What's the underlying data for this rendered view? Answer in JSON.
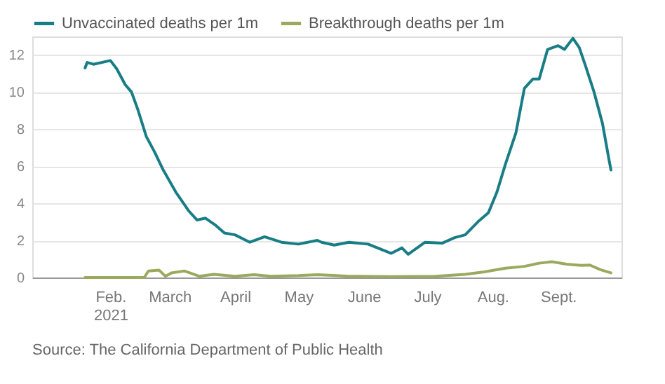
{
  "chart_data": {
    "type": "line",
    "legend": "top left",
    "grid": "y",
    "marker": "none",
    "line_style": "solid",
    "xlim": [
      "2020-12-26",
      "2021-10-01"
    ],
    "xticks": [
      {
        "value": "2021-02-01",
        "label": "Feb.\n2021"
      },
      {
        "value": "2021-03-01",
        "label": "March"
      },
      {
        "value": "2021-04-01",
        "label": "April"
      },
      {
        "value": "2021-05-01",
        "label": "May"
      },
      {
        "value": "2021-06-01",
        "label": "June"
      },
      {
        "value": "2021-07-01",
        "label": "July"
      },
      {
        "value": "2021-08-01",
        "label": "Aug."
      },
      {
        "value": "2021-09-01",
        "label": "Sept."
      }
    ],
    "ylim": [
      0,
      13
    ],
    "yticks": [
      0,
      2,
      4,
      6,
      8,
      10,
      12
    ],
    "annotations": [
      "Source: The California Department of Public Health"
    ],
    "series": [
      {
        "name": "Unvaccinated deaths per 1m",
        "color": "#197d86",
        "x": [
          "2021-01-20",
          "2021-01-21",
          "2021-01-24",
          "2021-02-01",
          "2021-02-04",
          "2021-02-08",
          "2021-02-11",
          "2021-02-14",
          "2021-02-18",
          "2021-02-22",
          "2021-02-26",
          "2021-02-28",
          "2021-03-04",
          "2021-03-10",
          "2021-03-14",
          "2021-03-18",
          "2021-03-23",
          "2021-03-27",
          "2021-04-01",
          "2021-04-08",
          "2021-04-15",
          "2021-04-23",
          "2021-05-01",
          "2021-05-10",
          "2021-05-12",
          "2021-05-18",
          "2021-05-25",
          "2021-06-03",
          "2021-06-14",
          "2021-06-19",
          "2021-06-22",
          "2021-06-30",
          "2021-07-08",
          "2021-07-14",
          "2021-07-19",
          "2021-07-25",
          "2021-07-30",
          "2021-08-03",
          "2021-08-07",
          "2021-08-12",
          "2021-08-16",
          "2021-08-20",
          "2021-08-23",
          "2021-08-27",
          "2021-09-01",
          "2021-09-04",
          "2021-09-08",
          "2021-09-11",
          "2021-09-14",
          "2021-09-18",
          "2021-09-22",
          "2021-09-25",
          "2021-09-26"
        ],
        "values": [
          11.3,
          11.6,
          11.5,
          11.7,
          11.25,
          10.4,
          10.0,
          9.05,
          7.6,
          6.75,
          5.8,
          5.4,
          4.6,
          3.6,
          3.1,
          3.2,
          2.8,
          2.4,
          2.3,
          1.9,
          2.2,
          1.9,
          1.8,
          2.0,
          1.9,
          1.75,
          1.9,
          1.8,
          1.3,
          1.6,
          1.25,
          1.9,
          1.85,
          2.15,
          2.3,
          3.0,
          3.5,
          4.6,
          6.1,
          7.8,
          10.2,
          10.7,
          10.7,
          12.3,
          12.5,
          12.3,
          12.9,
          12.4,
          11.4,
          10.0,
          8.3,
          6.4,
          5.8
        ]
      },
      {
        "name": "Breakthrough deaths per 1m",
        "color": "#9ba95e",
        "x": [
          "2021-01-20",
          "2021-02-17",
          "2021-02-19",
          "2021-02-24",
          "2021-02-27",
          "2021-03-02",
          "2021-03-08",
          "2021-03-15",
          "2021-03-22",
          "2021-04-01",
          "2021-04-10",
          "2021-04-18",
          "2021-05-01",
          "2021-05-10",
          "2021-05-19",
          "2021-05-25",
          "2021-06-14",
          "2021-07-05",
          "2021-07-19",
          "2021-07-28",
          "2021-08-07",
          "2021-08-16",
          "2021-08-23",
          "2021-08-29",
          "2021-09-05",
          "2021-09-12",
          "2021-09-16",
          "2021-09-21",
          "2021-09-26"
        ],
        "values": [
          0,
          0,
          0.35,
          0.4,
          0.07,
          0.25,
          0.35,
          0.07,
          0.17,
          0.07,
          0.15,
          0.07,
          0.1,
          0.15,
          0.1,
          0.07,
          0.05,
          0.07,
          0.17,
          0.3,
          0.5,
          0.6,
          0.77,
          0.85,
          0.72,
          0.65,
          0.67,
          0.42,
          0.25
        ]
      }
    ]
  }
}
